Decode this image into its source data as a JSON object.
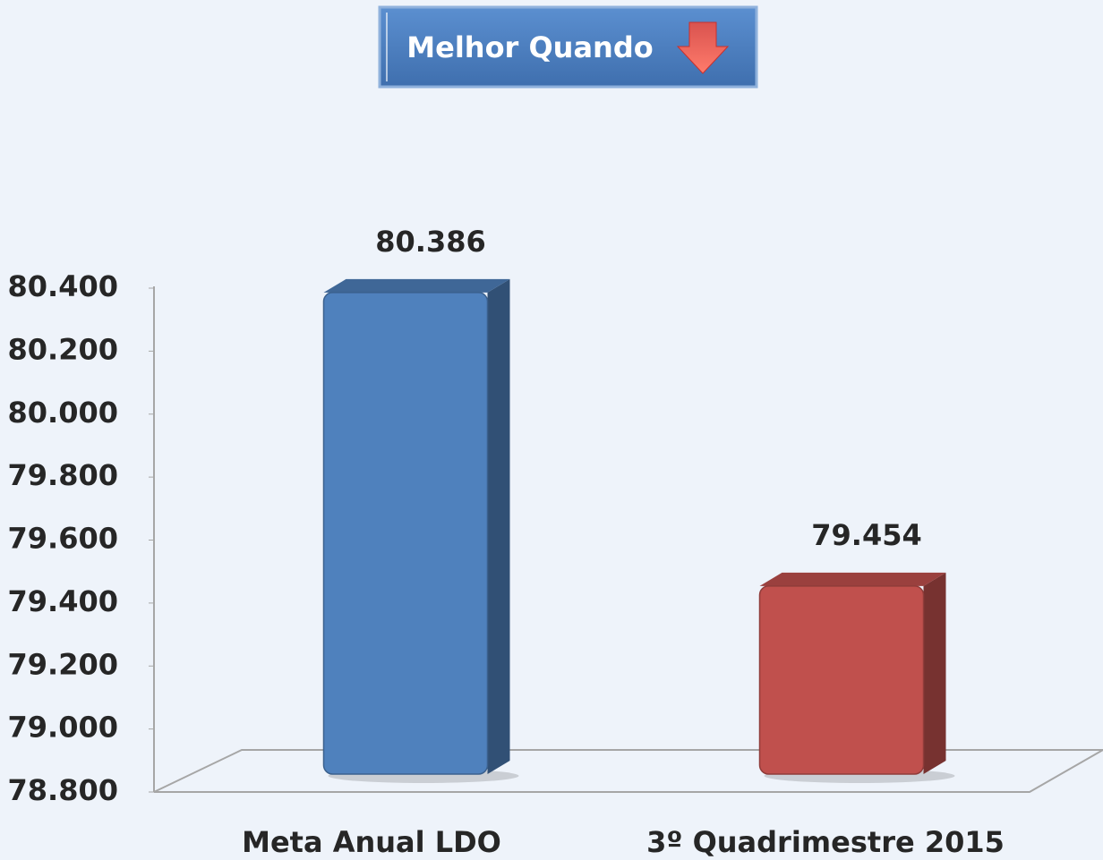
{
  "chart_data": {
    "type": "bar3d",
    "annotation": "Melhor Quando",
    "categories": [
      "Meta Anual LDO",
      "3º Quadrimestre 2015"
    ],
    "values": [
      80.386,
      79.454
    ],
    "colors": [
      "#4f81bd",
      "#c0504d"
    ],
    "ylim": [
      78.8,
      80.4
    ],
    "yticks": [
      {
        "value": 78.8,
        "label": "78.800"
      },
      {
        "value": 79.0,
        "label": "79.000"
      },
      {
        "value": 79.2,
        "label": "79.200"
      },
      {
        "value": 79.4,
        "label": "79.400"
      },
      {
        "value": 79.6,
        "label": "79.600"
      },
      {
        "value": 79.8,
        "label": "79.800"
      },
      {
        "value": 80.0,
        "label": "80.000"
      },
      {
        "value": 80.2,
        "label": "80.200"
      },
      {
        "value": 80.4,
        "label": "80.400"
      }
    ]
  }
}
